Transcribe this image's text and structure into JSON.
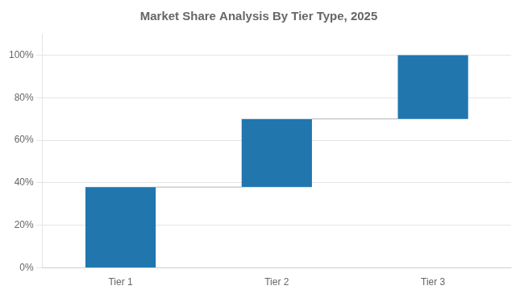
{
  "chart_data": {
    "type": "waterfall",
    "title": "Market Share Analysis By Tier Type, 2025",
    "categories": [
      "Tier 1",
      "Tier 2",
      "Tier 3"
    ],
    "values": [
      38,
      32,
      30
    ],
    "color": "#2176ae",
    "ylim": [
      0,
      110
    ],
    "yticks": [
      {
        "value": 0,
        "label": "0%"
      },
      {
        "value": 20,
        "label": "20%"
      },
      {
        "value": 40,
        "label": "40%"
      },
      {
        "value": 60,
        "label": "60%"
      },
      {
        "value": 80,
        "label": "80%"
      },
      {
        "value": 100,
        "label": "100%"
      }
    ],
    "grid": true
  }
}
